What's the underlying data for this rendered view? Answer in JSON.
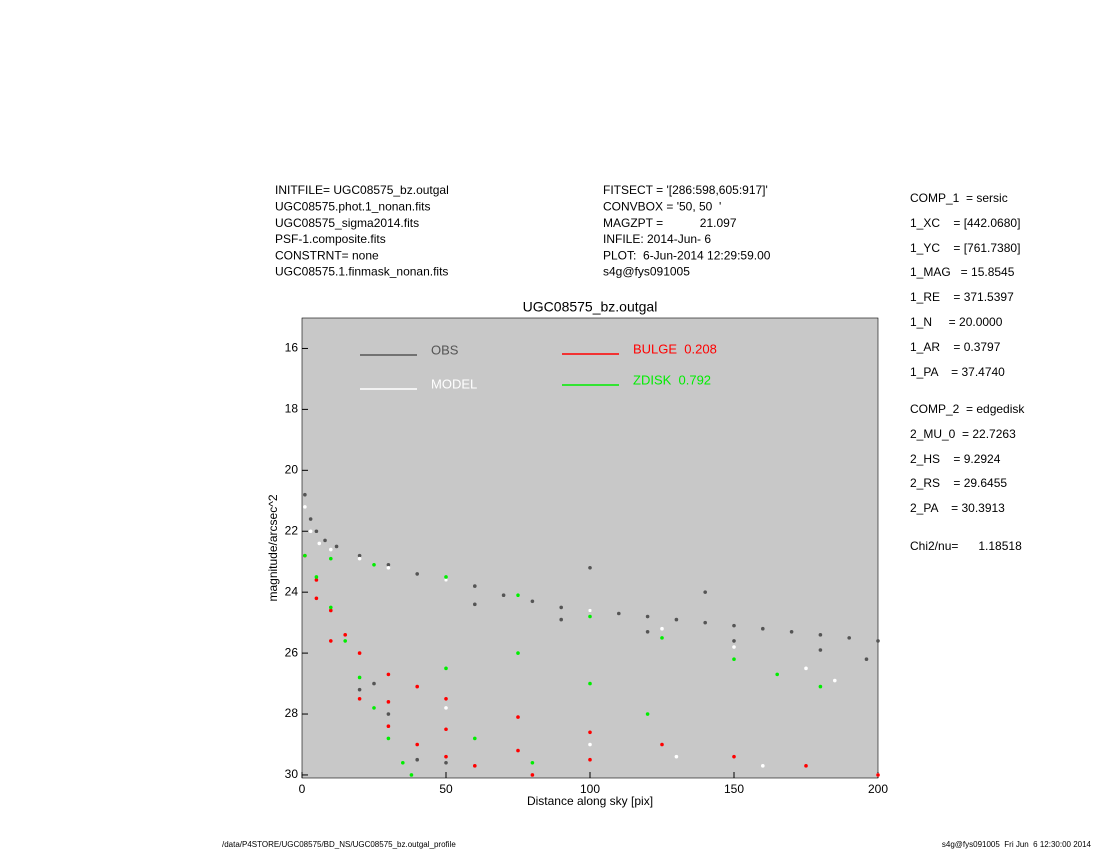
{
  "header": {
    "left": [
      "INITFILE= UGC08575_bz.outgal",
      "UGC08575.phot.1_nonan.fits",
      "UGC08575_sigma2014.fits",
      "PSF-1.composite.fits",
      "CONSTRNT= none",
      "UGC08575.1.finmask_nonan.fits"
    ],
    "middle": [
      "FITSECT = '[286:598,605:917]'",
      "CONVBOX = '50, 50  '",
      "MAGZPT =           21.097",
      "INFILE: 2014-Jun- 6",
      "PLOT:  6-Jun-2014 12:29:59.00",
      "s4g@fys091005"
    ]
  },
  "parameters": [
    "COMP_1  = sersic",
    "1_XC    = [442.0680]",
    "1_YC    = [761.7380]",
    "1_MAG   = 15.8545",
    "1_RE    = 371.5397",
    "1_N     = 20.0000",
    "1_AR    = 0.3797",
    "1_PA    = 37.4740",
    "COMP_2  = edgedisk",
    "2_MU_0  = 22.7263",
    "2_HS    = 9.2924",
    "2_RS    = 29.6455",
    "2_PA    = 30.3913",
    "Chi2/nu=      1.18518"
  ],
  "footer": {
    "left": "/data/P4STORE/UGC08575/BD_NS/UGC08575_bz.outgal_profile",
    "right": "s4g@fys091005  Fri Jun  6 12:30:00 2014"
  },
  "chart_data": {
    "type": "scatter",
    "title": "UGC08575_bz.outgal",
    "x_label": "Distance along sky [pix]",
    "y_label": "magnitude/arcsec^2",
    "xlim": [
      0,
      200
    ],
    "xticks": [
      0,
      50,
      100,
      150,
      200
    ],
    "ylim": [
      15,
      30.1
    ],
    "yticks": [
      16,
      18,
      20,
      22,
      24,
      26,
      28,
      30
    ],
    "y_inverted": true,
    "background": "#c8c8c8",
    "series": [
      {
        "name": "OBS",
        "color": "#555555",
        "x": [
          1,
          3,
          5,
          8,
          12,
          20,
          30,
          40,
          50,
          60,
          70,
          80,
          90,
          100,
          110,
          120,
          130,
          140,
          150,
          160,
          170,
          180,
          190,
          200,
          60,
          90,
          120,
          150,
          180,
          196,
          100,
          140,
          20,
          25,
          30,
          40,
          50
        ],
        "y": [
          20.8,
          21.6,
          22.0,
          22.3,
          22.5,
          22.8,
          23.1,
          23.4,
          23.6,
          23.8,
          24.1,
          24.3,
          24.5,
          24.6,
          24.7,
          24.8,
          24.9,
          25.0,
          25.1,
          25.2,
          25.3,
          25.4,
          25.5,
          25.6,
          24.4,
          24.9,
          25.3,
          25.6,
          25.9,
          26.2,
          23.2,
          24.0,
          27.2,
          27.0,
          28.0,
          29.5,
          29.6
        ]
      },
      {
        "name": "MODEL",
        "color": "#ffffff",
        "x": [
          1,
          3,
          6,
          10,
          20,
          30,
          50,
          75,
          100,
          125,
          150,
          175,
          185,
          50,
          100,
          130,
          160,
          200
        ],
        "y": [
          21.2,
          22.0,
          22.4,
          22.6,
          22.9,
          23.2,
          23.6,
          24.1,
          24.6,
          25.2,
          25.8,
          26.5,
          26.9,
          27.8,
          29.0,
          29.4,
          29.7,
          30.0
        ]
      },
      {
        "name": "BULGE  0.208",
        "color": "#ff0000",
        "x": [
          1,
          5,
          10,
          15,
          20,
          30,
          40,
          50,
          75,
          100,
          125,
          150,
          175,
          200,
          5,
          10,
          20,
          30,
          40,
          50,
          60,
          80,
          30,
          50,
          75,
          100
        ],
        "y": [
          22.8,
          23.6,
          24.6,
          25.4,
          26.0,
          26.7,
          27.1,
          27.5,
          28.1,
          28.6,
          29.0,
          29.4,
          29.7,
          30.0,
          24.2,
          25.6,
          27.5,
          28.4,
          29.0,
          29.4,
          29.7,
          30.0,
          27.6,
          28.5,
          29.2,
          29.5
        ]
      },
      {
        "name": "ZDISK  0.792",
        "color": "#00ee00",
        "x": [
          1,
          10,
          25,
          50,
          75,
          100,
          125,
          150,
          165,
          180,
          5,
          10,
          15,
          20,
          25,
          30,
          35,
          38,
          50,
          75,
          100,
          60,
          80,
          120
        ],
        "y": [
          22.8,
          22.9,
          23.1,
          23.5,
          24.1,
          24.8,
          25.5,
          26.2,
          26.7,
          27.1,
          23.5,
          24.5,
          25.6,
          26.8,
          27.8,
          28.8,
          29.6,
          30.0,
          26.5,
          26.0,
          27.0,
          28.8,
          29.6,
          28.0
        ]
      }
    ]
  }
}
